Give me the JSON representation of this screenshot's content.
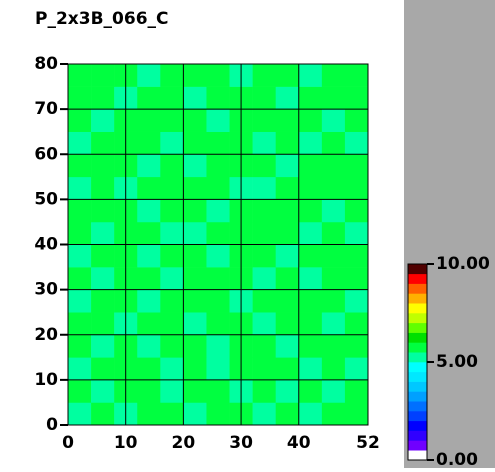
{
  "chart_data": {
    "type": "heatmap",
    "title": "P_2x3B_066_C",
    "xlim": [
      0,
      52
    ],
    "ylim": [
      0,
      80
    ],
    "xticks": [
      0,
      10,
      20,
      30,
      40,
      52
    ],
    "yticks": [
      0,
      10,
      20,
      30,
      40,
      50,
      60,
      70,
      80
    ],
    "grid": true,
    "zlim": [
      0,
      10
    ],
    "colorbar_ticks": [
      {
        "value": 0,
        "label": "0.00"
      },
      {
        "value": 5,
        "label": "5.00"
      },
      {
        "value": 10,
        "label": "10.00"
      }
    ],
    "colorscale": [
      "#ffffff",
      "#7000ff",
      "#3000ff",
      "#0000ff",
      "#0040ff",
      "#0070ff",
      "#00a0ff",
      "#00c8ff",
      "#00e8ff",
      "#00ffff",
      "#00ffa0",
      "#00ff40",
      "#00e000",
      "#60ff00",
      "#c0ff00",
      "#ffff00",
      "#ffb000",
      "#ff6000",
      "#ff0000",
      "#500000"
    ],
    "z": [
      [
        5.4,
        5.7,
        5.3,
        5.6,
        5.8,
        5.2,
        5.5,
        5.6,
        5.4,
        5.7,
        5.3,
        5.6,
        5.5
      ],
      [
        5.6,
        5.2,
        5.7,
        5.5,
        5.4,
        5.6,
        5.8,
        5.3,
        5.6,
        5.4,
        5.7,
        5.2,
        5.6
      ],
      [
        5.3,
        5.6,
        5.5,
        5.8,
        5.2,
        5.5,
        5.4,
        5.7,
        5.5,
        5.6,
        5.3,
        5.7,
        5.4
      ],
      [
        5.7,
        5.4,
        5.6,
        5.3,
        5.6,
        5.7,
        5.2,
        5.5,
        5.8,
        5.3,
        5.6,
        5.5,
        5.6
      ],
      [
        5.5,
        5.8,
        5.3,
        5.6,
        5.5,
        5.4,
        5.7,
        5.6,
        5.3,
        5.7,
        5.5,
        5.4,
        5.7
      ],
      [
        5.2,
        5.5,
        5.7,
        5.4,
        5.8,
        5.6,
        5.5,
        5.3,
        5.6,
        5.5,
        5.8,
        5.6,
        5.3
      ],
      [
        5.6,
        5.4,
        5.5,
        5.7,
        5.3,
        5.5,
        5.8,
        5.6,
        5.4,
        5.6,
        5.3,
        5.7,
        5.5
      ],
      [
        5.4,
        5.7,
        5.6,
        5.2,
        5.6,
        5.7,
        5.4,
        5.5,
        5.7,
        5.3,
        5.6,
        5.5,
        5.6
      ],
      [
        5.7,
        5.3,
        5.5,
        5.6,
        5.4,
        5.3,
        5.6,
        5.8,
        5.5,
        5.6,
        5.4,
        5.7,
        5.4
      ],
      [
        5.5,
        5.6,
        5.8,
        5.4,
        5.7,
        5.6,
        5.3,
        5.5,
        5.6,
        5.8,
        5.5,
        5.3,
        5.6
      ],
      [
        5.3,
        5.5,
        5.4,
        5.7,
        5.5,
        5.8,
        5.6,
        5.4,
        5.3,
        5.5,
        5.7,
        5.6,
        5.5
      ],
      [
        5.6,
        5.8,
        5.5,
        5.3,
        5.6,
        5.4,
        5.5,
        5.7,
        5.6,
        5.4,
        5.6,
        5.5,
        5.7
      ],
      [
        5.4,
        5.6,
        5.7,
        5.5,
        5.3,
        5.6,
        5.7,
        5.5,
        5.4,
        5.7,
        5.3,
        5.6,
        5.4
      ],
      [
        5.7,
        5.3,
        5.6,
        5.6,
        5.7,
        5.5,
        5.4,
        5.6,
        5.8,
        5.5,
        5.6,
        5.4,
        5.6
      ],
      [
        5.5,
        5.6,
        5.4,
        5.8,
        5.5,
        5.3,
        5.6,
        5.5,
        5.6,
        5.3,
        5.7,
        5.6,
        5.5
      ],
      [
        5.6,
        5.5,
        5.7,
        5.4,
        5.6,
        5.7,
        5.5,
        5.3,
        5.5,
        5.6,
        5.4,
        5.7,
        5.6
      ]
    ]
  }
}
